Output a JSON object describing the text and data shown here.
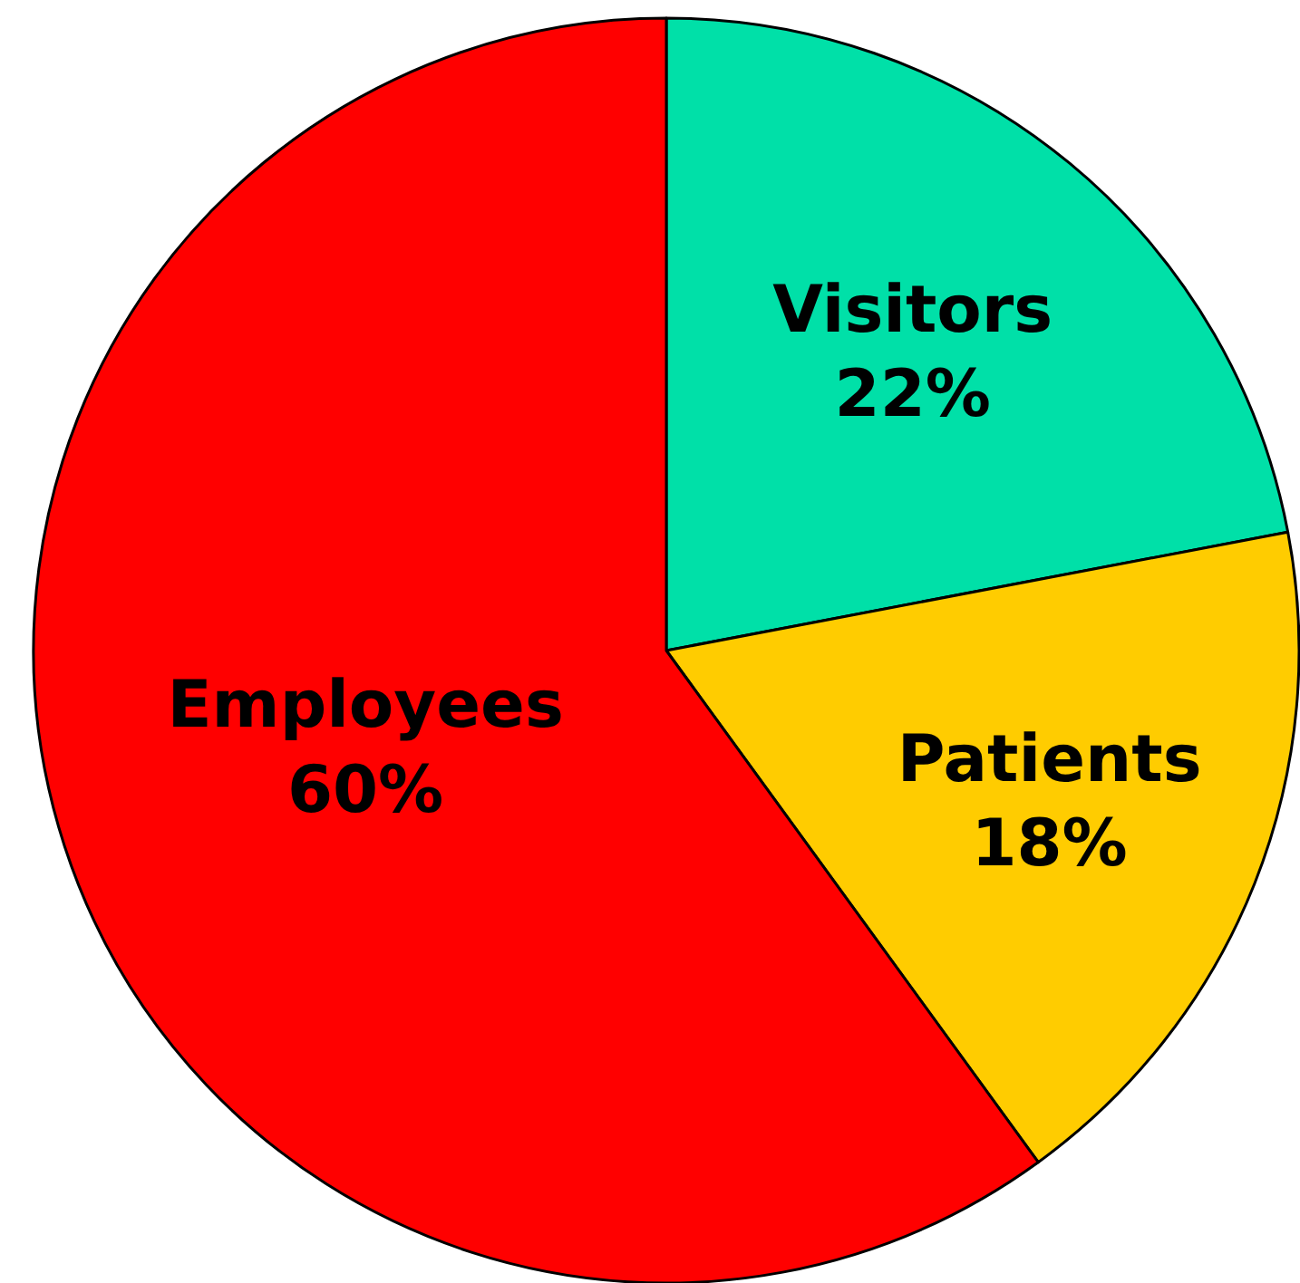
{
  "chart_data": {
    "type": "pie",
    "categories": [
      "Visitors",
      "Patients",
      "Employees"
    ],
    "values": [
      22,
      18,
      60
    ],
    "colors": [
      "#00e0a8",
      "#ffcc00",
      "#ff0000"
    ],
    "value_labels": [
      "22%",
      "18%",
      "60%"
    ]
  }
}
